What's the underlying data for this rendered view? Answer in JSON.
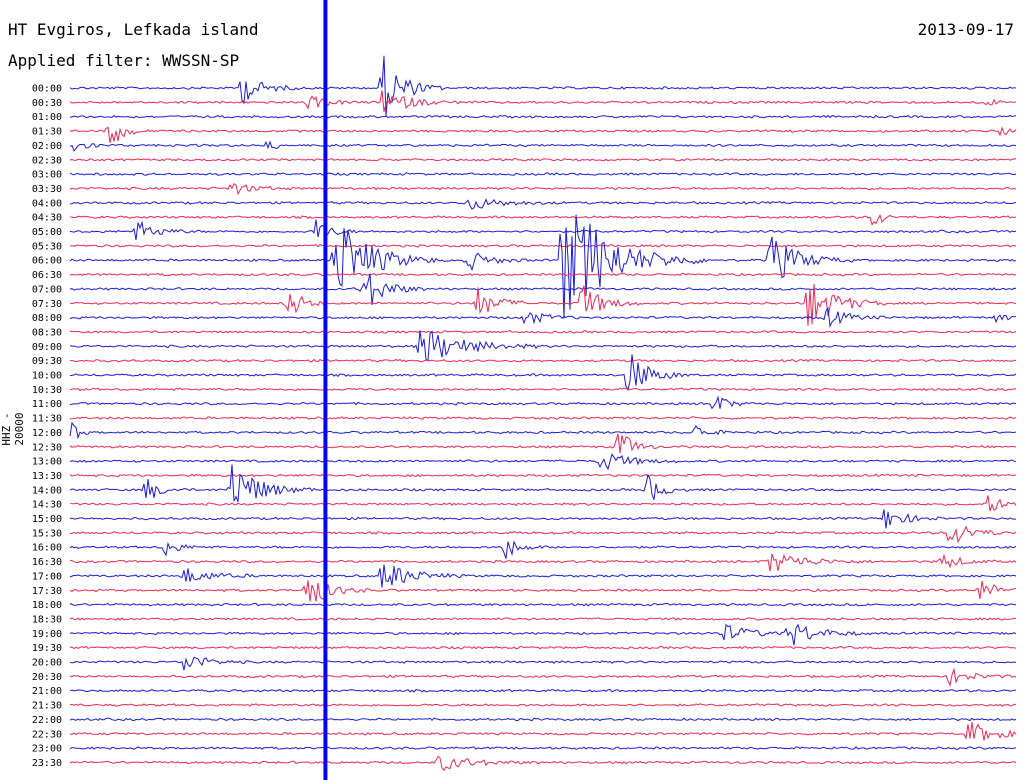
{
  "header": {
    "station": "HT Evgiros, Lefkada island",
    "filter": "Applied filter: WWSSN-SP",
    "date": "2013-09-17"
  },
  "colors": {
    "blue_trace": "#1a1adc",
    "red_trace": "#ee2755",
    "marker": "#0000ff"
  },
  "chart_data": {
    "type": "line",
    "kind": "helicorder-seismogram",
    "ylabel": "HHZ - 20000",
    "row_interval_minutes": 30,
    "tick_labels": [
      "00:00",
      "00:30",
      "01:00",
      "01:30",
      "02:00",
      "02:30",
      "03:00",
      "03:30",
      "04:00",
      "04:30",
      "05:00",
      "05:30",
      "06:00",
      "06:30",
      "07:00",
      "07:30",
      "08:00",
      "08:30",
      "09:00",
      "09:30",
      "10:00",
      "10:30",
      "11:00",
      "11:30",
      "12:00",
      "12:30",
      "13:00",
      "13:30",
      "14:00",
      "14:30",
      "15:00",
      "15:30",
      "16:00",
      "16:30",
      "17:00",
      "17:30",
      "18:00",
      "18:30",
      "19:00",
      "19:30",
      "20:00",
      "20:30",
      "21:00",
      "21:30",
      "22:00",
      "22:30",
      "23:00",
      "23:30"
    ],
    "row_colors_alternate": [
      "blue",
      "red"
    ],
    "marker_time_fraction": 0.27,
    "events": [
      {
        "row": 0,
        "t": 0.18,
        "amp": 1.2,
        "dur": 0.03
      },
      {
        "row": 0,
        "t": 0.33,
        "amp": 2.5,
        "dur": 0.03
      },
      {
        "row": 1,
        "t": 0.33,
        "amp": 0.9,
        "dur": 0.04
      },
      {
        "row": 1,
        "t": 0.25,
        "amp": 0.5,
        "dur": 0.03
      },
      {
        "row": 1,
        "t": 0.97,
        "amp": 0.4,
        "dur": 0.01
      },
      {
        "row": 3,
        "t": 0.04,
        "amp": 1.5,
        "dur": 0.02
      },
      {
        "row": 3,
        "t": 0.985,
        "amp": 0.6,
        "dur": 0.01
      },
      {
        "row": 4,
        "t": 0.0,
        "amp": 0.8,
        "dur": 0.02
      },
      {
        "row": 4,
        "t": 0.21,
        "amp": 0.6,
        "dur": 0.01
      },
      {
        "row": 7,
        "t": 0.17,
        "amp": 0.5,
        "dur": 0.03
      },
      {
        "row": 8,
        "t": 0.42,
        "amp": 0.5,
        "dur": 0.05
      },
      {
        "row": 9,
        "t": 0.85,
        "amp": 1.3,
        "dur": 0.01
      },
      {
        "row": 10,
        "t": 0.07,
        "amp": 0.8,
        "dur": 0.03
      },
      {
        "row": 10,
        "t": 0.26,
        "amp": 1.0,
        "dur": 0.02
      },
      {
        "row": 12,
        "t": 0.28,
        "amp": 3.5,
        "dur": 0.05
      },
      {
        "row": 12,
        "t": 0.52,
        "amp": 4.5,
        "dur": 0.07
      },
      {
        "row": 12,
        "t": 0.74,
        "amp": 2.0,
        "dur": 0.04
      },
      {
        "row": 12,
        "t": 0.42,
        "amp": 0.8,
        "dur": 0.03
      },
      {
        "row": 12,
        "t": 0.55,
        "amp": 0.7,
        "dur": 0.02
      },
      {
        "row": 14,
        "t": 0.31,
        "amp": 1.8,
        "dur": 0.03
      },
      {
        "row": 15,
        "t": 0.23,
        "amp": 1.4,
        "dur": 0.02
      },
      {
        "row": 15,
        "t": 0.43,
        "amp": 1.2,
        "dur": 0.03
      },
      {
        "row": 15,
        "t": 0.54,
        "amp": 1.5,
        "dur": 0.03
      },
      {
        "row": 15,
        "t": 0.78,
        "amp": 2.0,
        "dur": 0.04
      },
      {
        "row": 16,
        "t": 0.48,
        "amp": 0.6,
        "dur": 0.03
      },
      {
        "row": 16,
        "t": 0.8,
        "amp": 0.7,
        "dur": 0.03
      },
      {
        "row": 16,
        "t": 0.98,
        "amp": 0.6,
        "dur": 0.01
      },
      {
        "row": 18,
        "t": 0.37,
        "amp": 1.5,
        "dur": 0.06
      },
      {
        "row": 20,
        "t": 0.59,
        "amp": 1.8,
        "dur": 0.03
      },
      {
        "row": 22,
        "t": 0.68,
        "amp": 0.8,
        "dur": 0.02
      },
      {
        "row": 24,
        "t": 0.0,
        "amp": 1.2,
        "dur": 0.01
      },
      {
        "row": 24,
        "t": 0.66,
        "amp": 0.6,
        "dur": 0.02
      },
      {
        "row": 25,
        "t": 0.58,
        "amp": 1.4,
        "dur": 0.02
      },
      {
        "row": 26,
        "t": 0.56,
        "amp": 0.8,
        "dur": 0.04
      },
      {
        "row": 28,
        "t": 0.17,
        "amp": 2.2,
        "dur": 0.04
      },
      {
        "row": 28,
        "t": 0.08,
        "amp": 1.0,
        "dur": 0.02
      },
      {
        "row": 28,
        "t": 0.61,
        "amp": 1.2,
        "dur": 0.02
      },
      {
        "row": 29,
        "t": 0.97,
        "amp": 0.8,
        "dur": 0.02
      },
      {
        "row": 30,
        "t": 0.86,
        "amp": 0.9,
        "dur": 0.03
      },
      {
        "row": 31,
        "t": 0.93,
        "amp": 1.1,
        "dur": 0.03
      },
      {
        "row": 32,
        "t": 0.46,
        "amp": 0.9,
        "dur": 0.02
      },
      {
        "row": 32,
        "t": 0.1,
        "amp": 0.7,
        "dur": 0.02
      },
      {
        "row": 33,
        "t": 0.74,
        "amp": 0.8,
        "dur": 0.05
      },
      {
        "row": 33,
        "t": 0.92,
        "amp": 0.6,
        "dur": 0.03
      },
      {
        "row": 34,
        "t": 0.33,
        "amp": 1.2,
        "dur": 0.04
      },
      {
        "row": 34,
        "t": 0.12,
        "amp": 0.6,
        "dur": 0.04
      },
      {
        "row": 35,
        "t": 0.25,
        "amp": 1.5,
        "dur": 0.03
      },
      {
        "row": 35,
        "t": 0.96,
        "amp": 0.8,
        "dur": 0.03
      },
      {
        "row": 38,
        "t": 0.69,
        "amp": 0.7,
        "dur": 0.04
      },
      {
        "row": 38,
        "t": 0.76,
        "amp": 1.0,
        "dur": 0.04
      },
      {
        "row": 40,
        "t": 0.12,
        "amp": 0.8,
        "dur": 0.03
      },
      {
        "row": 41,
        "t": 0.93,
        "amp": 0.6,
        "dur": 0.03
      },
      {
        "row": 45,
        "t": 0.95,
        "amp": 0.9,
        "dur": 0.04
      },
      {
        "row": 47,
        "t": 0.39,
        "amp": 0.6,
        "dur": 0.05
      }
    ]
  }
}
